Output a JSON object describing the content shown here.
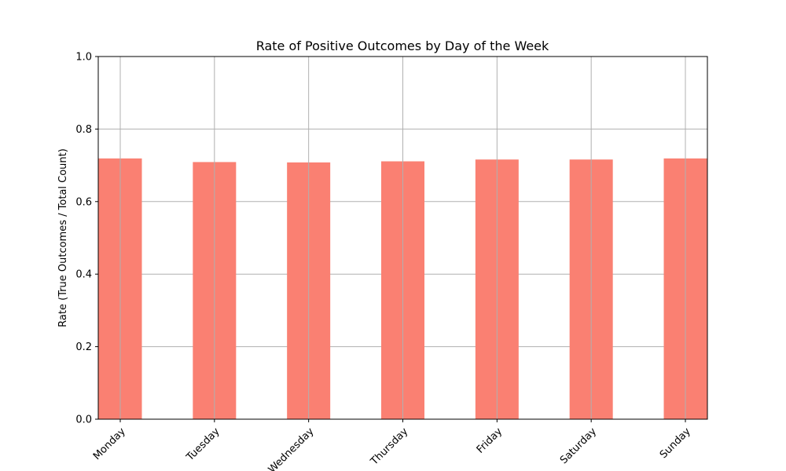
{
  "chart_data": {
    "type": "bar",
    "title": "Rate of Positive Outcomes by Day of the Week",
    "xlabel": "",
    "ylabel": "Rate (True Outcomes / Total Count)",
    "categories": [
      "Monday",
      "Tuesday",
      "Wednesday",
      "Thursday",
      "Friday",
      "Saturday",
      "Sunday"
    ],
    "values": [
      0.719,
      0.709,
      0.708,
      0.711,
      0.716,
      0.716,
      0.719
    ],
    "ylim": [
      0,
      1.0
    ],
    "yticks": [
      "0.0",
      "0.2",
      "0.4",
      "0.6",
      "0.8",
      "1.0"
    ],
    "grid": true,
    "bar_color": "#fa8072",
    "xtick_rotation": "45"
  }
}
